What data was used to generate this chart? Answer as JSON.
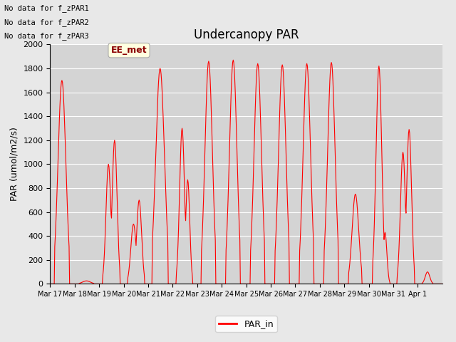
{
  "title": "Undercanopy PAR",
  "ylabel": "PAR (umol/m2/s)",
  "ylim": [
    0,
    2000
  ],
  "yticks": [
    0,
    200,
    400,
    600,
    800,
    1000,
    1200,
    1400,
    1600,
    1800,
    2000
  ],
  "line_color": "red",
  "line_label": "PAR_in",
  "background_color": "#e8e8e8",
  "plot_bg_color": "#d4d4d4",
  "annotations": [
    "No data for f_zPAR1",
    "No data for f_zPAR2",
    "No data for f_zPAR3"
  ],
  "ee_met_label": "EE_met",
  "n_days": 16,
  "pts_per_day": 48,
  "xtick_labels": [
    "Mar 17",
    "Mar 18",
    "Mar 19",
    "Mar 20",
    "Mar 21",
    "Mar 22",
    "Mar 23",
    "Mar 24",
    "Mar 25",
    "Mar 26",
    "Mar 27",
    "Mar 28",
    "Mar 29",
    "Mar 30",
    "Mar 31",
    "Apr 1"
  ]
}
